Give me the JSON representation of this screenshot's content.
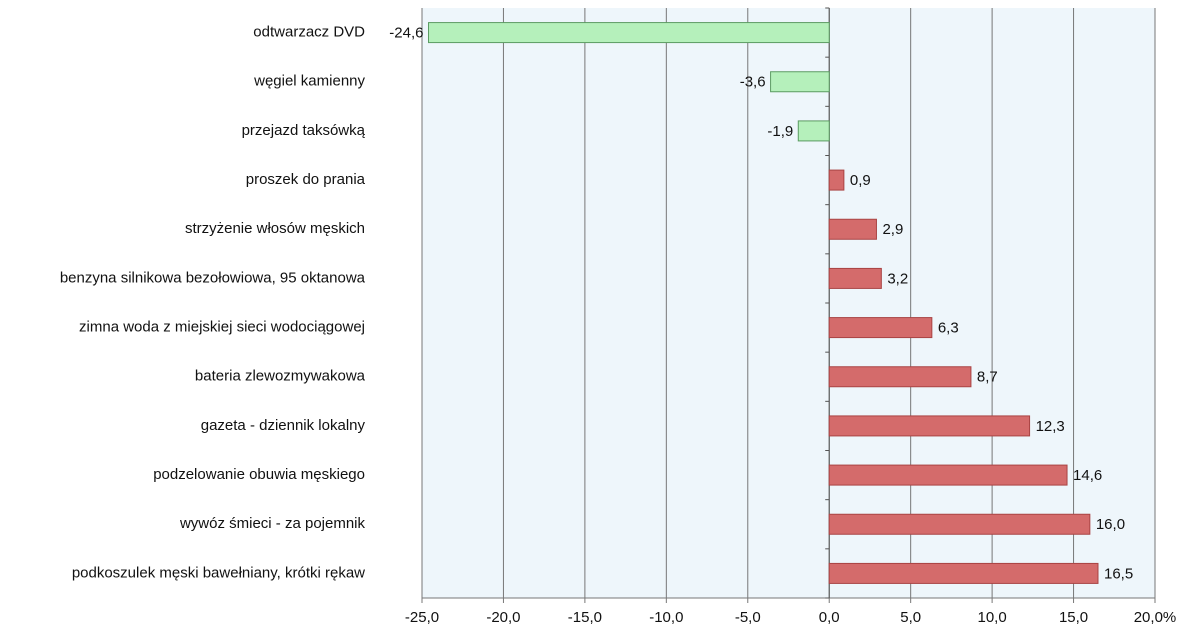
{
  "chart_data": {
    "type": "barh",
    "categories": [
      "odtwarzacz DVD",
      "węgiel kamienny",
      "przejazd taksówką",
      "proszek do prania",
      "strzyżenie włosów męskich",
      "benzyna silnikowa bezołowiowa, 95 oktanowa",
      "zimna woda z miejskiej sieci wodociągowej",
      "bateria zlewozmywakowa",
      "gazeta - dziennik lokalny",
      "podzelowanie obuwia męskiego",
      "wywóz śmieci - za pojemnik",
      "podkoszulek męski bawełniany, krótki rękaw"
    ],
    "values": [
      -24.6,
      -3.6,
      -1.9,
      0.9,
      2.9,
      3.2,
      6.3,
      8.7,
      12.3,
      14.6,
      16.0,
      16.5
    ],
    "value_labels": [
      "-24,6",
      "-3,6",
      "-1,9",
      "0,9",
      "2,9",
      "3,2",
      "6,3",
      "8,7",
      "12,3",
      "14,6",
      "16,0",
      "16,5"
    ],
    "colors": [
      "#b5f0bb",
      "#b5f0bb",
      "#b5f0bb",
      "#d46b6b",
      "#d46b6b",
      "#d46b6b",
      "#d46b6b",
      "#d46b6b",
      "#d46b6b",
      "#d46b6b",
      "#d46b6b",
      "#d46b6b"
    ],
    "xlim": [
      -25,
      20
    ],
    "xticks": [
      {
        "value": -25,
        "label": "-25,0"
      },
      {
        "value": -20,
        "label": "-20,0"
      },
      {
        "value": -15,
        "label": "-15,0"
      },
      {
        "value": -10,
        "label": "-10,0"
      },
      {
        "value": -5,
        "label": "-5,0"
      },
      {
        "value": 0,
        "label": "0,0"
      },
      {
        "value": 5,
        "label": "5,0"
      },
      {
        "value": 10,
        "label": "10,0"
      },
      {
        "value": 15,
        "label": "15,0"
      },
      {
        "value": 20,
        "label": "20,0%"
      }
    ],
    "grid": true
  }
}
